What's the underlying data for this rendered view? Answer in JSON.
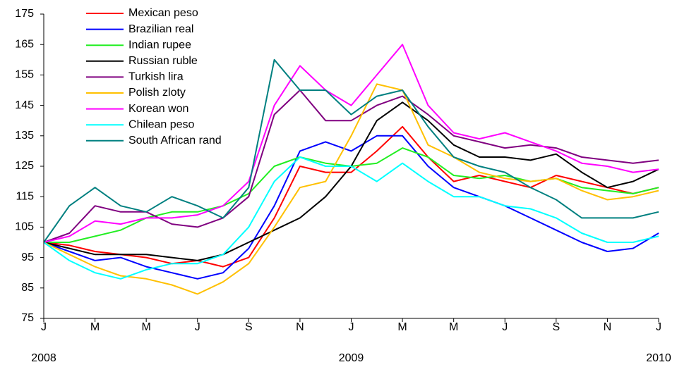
{
  "chart_data": {
    "type": "line",
    "categories": [
      "J",
      null,
      "M",
      null,
      "M",
      null,
      "J",
      null,
      "S",
      null,
      "N",
      null,
      "J",
      null,
      "M",
      null,
      "M",
      null,
      "J",
      null,
      "S",
      null,
      "N",
      null,
      "J"
    ],
    "year_labels": [
      "2008",
      "2009",
      "2010"
    ],
    "ylim": [
      75,
      175
    ],
    "yticks": [
      75,
      85,
      95,
      105,
      115,
      125,
      135,
      145,
      155,
      165,
      175
    ],
    "legend": "upper-left",
    "series": [
      {
        "name": "Mexican peso",
        "color": "#ff0000",
        "values": [
          100,
          99,
          97,
          96,
          95,
          93,
          94,
          92,
          95,
          108,
          125,
          123,
          123,
          130,
          138,
          128,
          120,
          122,
          120,
          118,
          122,
          120,
          118,
          116,
          118
        ]
      },
      {
        "name": "Brazilian real",
        "color": "#0000ff",
        "values": [
          100,
          97,
          94,
          95,
          92,
          90,
          88,
          90,
          98,
          112,
          130,
          133,
          130,
          135,
          135,
          125,
          118,
          115,
          112,
          108,
          104,
          100,
          97,
          98,
          103
        ]
      },
      {
        "name": "Indian rupee",
        "color": "#22ee22",
        "values": [
          100,
          100,
          102,
          104,
          108,
          110,
          110,
          112,
          116,
          125,
          128,
          126,
          125,
          126,
          131,
          128,
          122,
          121,
          122,
          120,
          121,
          118,
          117,
          116,
          118
        ]
      },
      {
        "name": "Russian ruble",
        "color": "#000000",
        "values": [
          100,
          98,
          96,
          96,
          96,
          95,
          94,
          96,
          100,
          104,
          108,
          115,
          125,
          140,
          146,
          140,
          132,
          128,
          128,
          127,
          129,
          123,
          118,
          120,
          124
        ]
      },
      {
        "name": "Turkish lira",
        "color": "#800080",
        "values": [
          100,
          103,
          112,
          110,
          110,
          106,
          105,
          108,
          115,
          142,
          150,
          140,
          140,
          145,
          148,
          142,
          135,
          133,
          131,
          132,
          131,
          128,
          127,
          126,
          127
        ]
      },
      {
        "name": "Polish zloty",
        "color": "#ffc000",
        "values": [
          100,
          96,
          92,
          89,
          88,
          86,
          83,
          87,
          93,
          105,
          118,
          120,
          135,
          152,
          150,
          132,
          128,
          123,
          121,
          120,
          121,
          117,
          114,
          115,
          117
        ]
      },
      {
        "name": "Korean won",
        "color": "#ff00ff",
        "values": [
          100,
          102,
          107,
          106,
          108,
          108,
          109,
          112,
          120,
          145,
          158,
          150,
          145,
          155,
          165,
          145,
          136,
          134,
          136,
          133,
          130,
          126,
          125,
          123,
          124
        ]
      },
      {
        "name": "Chilean peso",
        "color": "#00ffff",
        "values": [
          100,
          94,
          90,
          88,
          91,
          93,
          93,
          96,
          105,
          120,
          128,
          125,
          125,
          120,
          126,
          120,
          115,
          115,
          112,
          111,
          108,
          103,
          100,
          100,
          102
        ]
      },
      {
        "name": "South African rand",
        "color": "#008080",
        "values": [
          100,
          112,
          118,
          112,
          110,
          115,
          112,
          108,
          118,
          160,
          150,
          150,
          142,
          148,
          150,
          138,
          128,
          125,
          123,
          118,
          114,
          108,
          108,
          108,
          110
        ]
      }
    ]
  }
}
